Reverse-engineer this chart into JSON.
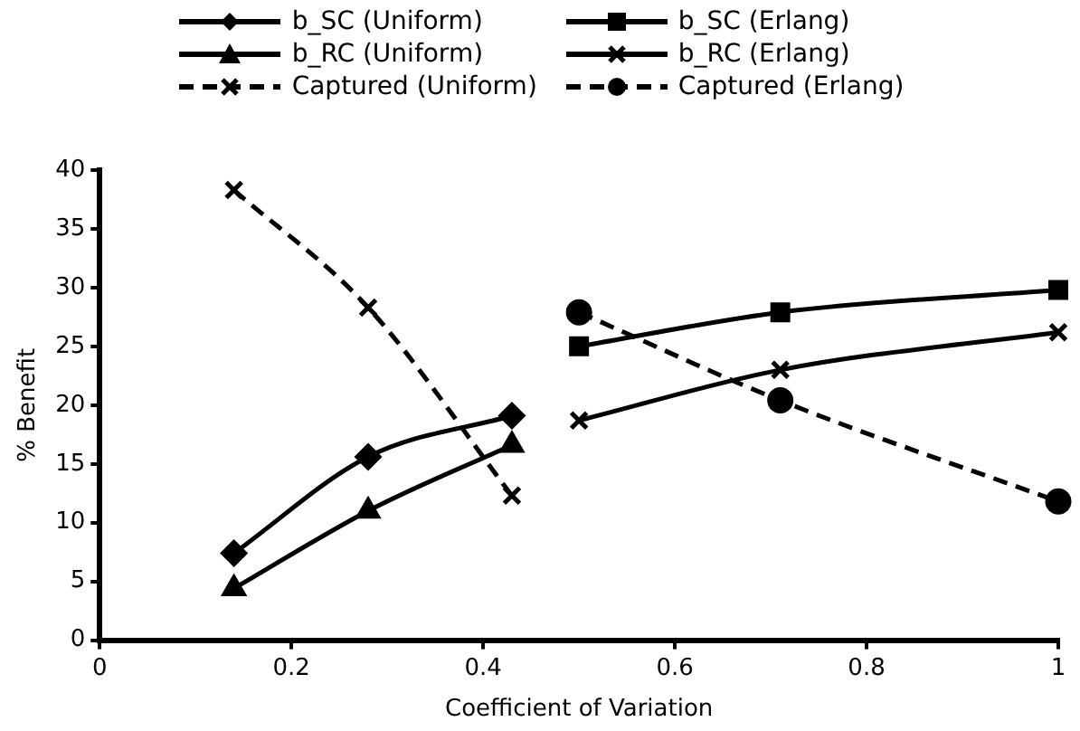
{
  "chart_data": {
    "type": "line",
    "xlabel": "Coefficient of Variation",
    "ylabel": "% Benefit",
    "xlim": [
      0,
      1
    ],
    "xticks": [
      0,
      0.2,
      0.4,
      0.6,
      0.8,
      1
    ],
    "ylim": [
      0,
      40
    ],
    "yticks": [
      0,
      5,
      10,
      15,
      20,
      25,
      30,
      35,
      40
    ],
    "grid": false,
    "legend": "top",
    "series": [
      {
        "name": "b_SC (Uniform)",
        "color": "#000000",
        "marker": "diamond",
        "line_style": "solid",
        "x": [
          0.14,
          0.28,
          0.43
        ],
        "values": [
          7.4,
          15.6,
          19.1
        ]
      },
      {
        "name": "b_SC (Erlang)",
        "color": "#000000",
        "marker": "square",
        "line_style": "solid",
        "x": [
          0.5,
          0.71,
          1
        ],
        "values": [
          25.0,
          27.9,
          29.8
        ]
      },
      {
        "name": "b_RC (Uniform)",
        "color": "#000000",
        "marker": "triangle",
        "line_style": "solid",
        "x": [
          0.14,
          0.28,
          0.43
        ],
        "values": [
          4.4,
          11.0,
          16.6
        ]
      },
      {
        "name": "b_RC (Erlang)",
        "color": "#000000",
        "marker": "cross",
        "line_style": "solid",
        "x": [
          0.5,
          0.71,
          1
        ],
        "values": [
          18.7,
          23.0,
          26.2
        ]
      },
      {
        "name": "Captured (Uniform)",
        "color": "#000000",
        "marker": "cross",
        "line_style": "dashed",
        "x": [
          0.14,
          0.28,
          0.43
        ],
        "values": [
          38.3,
          28.3,
          12.3
        ]
      },
      {
        "name": "Captured (Erlang)",
        "color": "#000000",
        "marker": "circle",
        "line_style": "dashed",
        "x": [
          0.5,
          0.71,
          1
        ],
        "values": [
          27.9,
          20.4,
          11.8
        ]
      }
    ]
  }
}
